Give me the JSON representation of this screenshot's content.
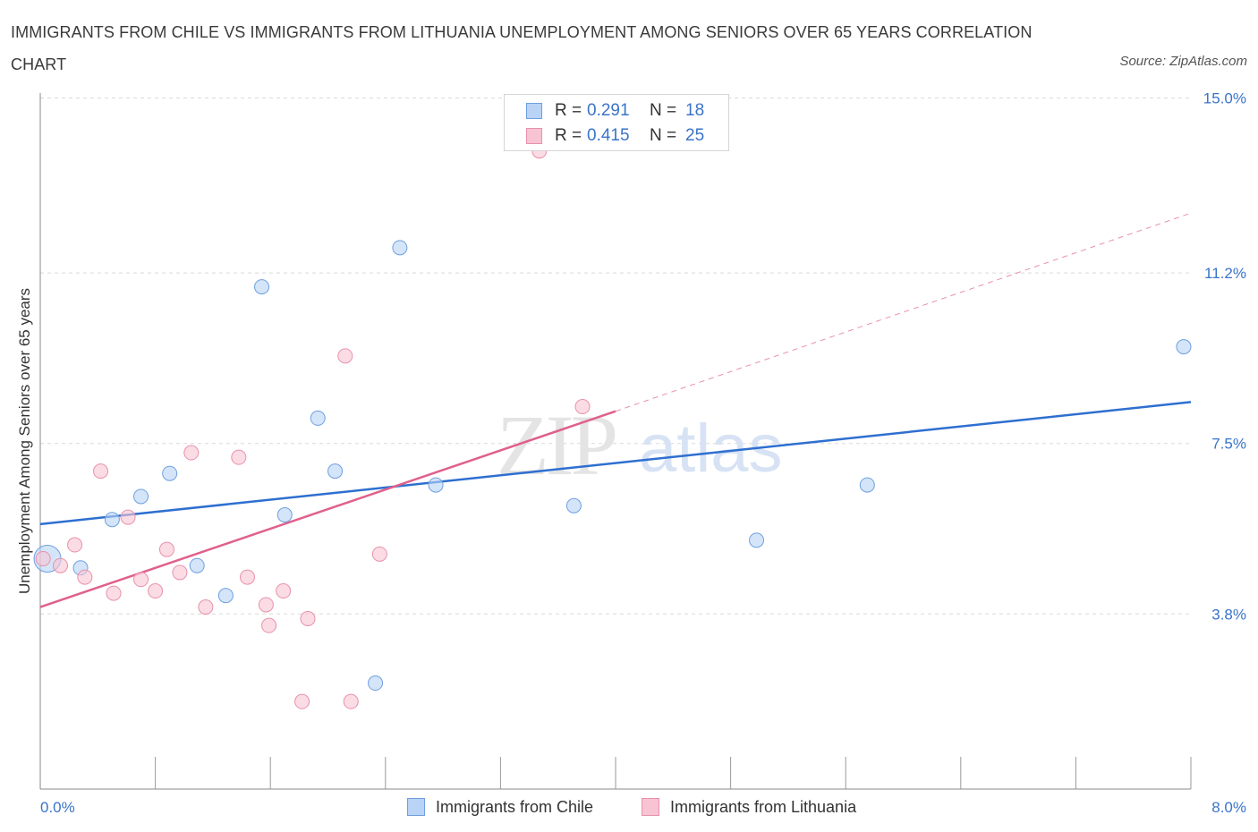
{
  "header": {
    "title": "IMMIGRANTS FROM CHILE VS IMMIGRANTS FROM LITHUANIA UNEMPLOYMENT AMONG SENIORS OVER 65 YEARS CORRELATION CHART",
    "source": "Source: ZipAtlas.com"
  },
  "legend": {
    "chile": {
      "r_label": "R =",
      "r_value": "0.291",
      "n_label": "N =",
      "n_value": "18"
    },
    "lithuania": {
      "r_label": "R =",
      "r_value": "0.415",
      "n_label": "N =",
      "n_value": "25"
    }
  },
  "bottom_legend": {
    "chile": "Immigrants from Chile",
    "lithuania": "Immigrants from Lithuania"
  },
  "watermark": {
    "zip": "ZIP",
    "atlas": "atlas"
  },
  "colors": {
    "chile_fill": "#b8d3f5",
    "chile_stroke": "#6f9fe0",
    "chile_line": "#2e6fd0",
    "lith_fill": "#f8c4d3",
    "lith_stroke": "#e891ab",
    "lith_line": "#e0608c",
    "axis_label": "#3a74c9",
    "grid": "#d9d9d9"
  },
  "chart_data": {
    "type": "scatter",
    "title": "IMMIGRANTS FROM CHILE VS IMMIGRANTS FROM LITHUANIA UNEMPLOYMENT AMONG SENIORS OVER 65 YEARS CORRELATION CHART",
    "xlabel": "",
    "ylabel": "Unemployment Among Seniors over 65 years",
    "xlim": [
      0,
      8.0
    ],
    "ylim": [
      0,
      15.3
    ],
    "x_tick_labels": [
      {
        "value": 0,
        "label": "0.0%"
      },
      {
        "value": 8.0,
        "label": "8.0%"
      }
    ],
    "x_minor_ticks": [
      0.8,
      1.6,
      2.4,
      3.2,
      4.0,
      4.8,
      5.6,
      6.4,
      7.2,
      8.0
    ],
    "y_ticks": [
      {
        "value": 3.8,
        "label": "3.8%"
      },
      {
        "value": 7.5,
        "label": "7.5%"
      },
      {
        "value": 11.2,
        "label": "11.2%"
      },
      {
        "value": 15.0,
        "label": "15.0%"
      }
    ],
    "grid": true,
    "series": [
      {
        "name": "Immigrants from Chile",
        "points": [
          {
            "x": 0.05,
            "y": 5.0,
            "big": true
          },
          {
            "x": 0.28,
            "y": 4.8
          },
          {
            "x": 0.5,
            "y": 5.85
          },
          {
            "x": 0.7,
            "y": 6.35
          },
          {
            "x": 0.9,
            "y": 6.85
          },
          {
            "x": 1.09,
            "y": 4.85
          },
          {
            "x": 1.29,
            "y": 4.2
          },
          {
            "x": 1.54,
            "y": 10.9
          },
          {
            "x": 1.7,
            "y": 5.95
          },
          {
            "x": 1.93,
            "y": 8.05
          },
          {
            "x": 2.05,
            "y": 6.9
          },
          {
            "x": 2.33,
            "y": 2.3
          },
          {
            "x": 2.5,
            "y": 11.75
          },
          {
            "x": 2.75,
            "y": 6.6
          },
          {
            "x": 3.71,
            "y": 6.15
          },
          {
            "x": 4.98,
            "y": 5.4
          },
          {
            "x": 5.75,
            "y": 6.6
          },
          {
            "x": 7.95,
            "y": 9.6
          }
        ],
        "trend": {
          "x0": 0,
          "y0": 5.75,
          "x1": 8.0,
          "y1": 8.4
        }
      },
      {
        "name": "Immigrants from Lithuania",
        "points": [
          {
            "x": 0.02,
            "y": 5.0
          },
          {
            "x": 0.14,
            "y": 4.85
          },
          {
            "x": 0.24,
            "y": 5.3
          },
          {
            "x": 0.31,
            "y": 4.6
          },
          {
            "x": 0.42,
            "y": 6.9
          },
          {
            "x": 0.51,
            "y": 4.25
          },
          {
            "x": 0.61,
            "y": 5.9
          },
          {
            "x": 0.7,
            "y": 4.55
          },
          {
            "x": 0.8,
            "y": 4.3
          },
          {
            "x": 0.88,
            "y": 5.2
          },
          {
            "x": 0.97,
            "y": 4.7
          },
          {
            "x": 1.05,
            "y": 7.3
          },
          {
            "x": 1.15,
            "y": 3.95
          },
          {
            "x": 1.38,
            "y": 7.2
          },
          {
            "x": 1.44,
            "y": 4.6
          },
          {
            "x": 1.57,
            "y": 4.0
          },
          {
            "x": 1.59,
            "y": 3.55
          },
          {
            "x": 1.69,
            "y": 4.3
          },
          {
            "x": 1.82,
            "y": 1.9
          },
          {
            "x": 1.86,
            "y": 3.7
          },
          {
            "x": 2.12,
            "y": 9.4
          },
          {
            "x": 2.16,
            "y": 1.9
          },
          {
            "x": 2.36,
            "y": 5.1
          },
          {
            "x": 3.47,
            "y": 13.85
          },
          {
            "x": 3.77,
            "y": 8.3
          }
        ],
        "trend": {
          "x0": 0,
          "y0": 3.95,
          "x1": 4.0,
          "y1": 8.2
        },
        "trend_extension": {
          "x0": 4.0,
          "y0": 8.2,
          "x1": 8.0,
          "y1": 12.5
        }
      }
    ]
  }
}
